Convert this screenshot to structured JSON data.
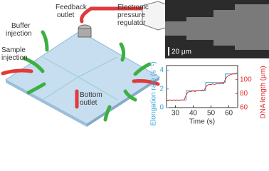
{
  "diagram": {
    "feedback_outlet": [
      "Feedback",
      "outlet"
    ],
    "pressure_regulator": [
      "Electronic",
      "pressure",
      "regulator"
    ],
    "buffer_injection": [
      "Buffer",
      "injection"
    ],
    "sample_injection": [
      "Sample",
      "injection"
    ],
    "bottom_outlet": [
      "Bottom",
      "outlet"
    ]
  },
  "micrograph": {
    "scale_bar": "20 μm"
  },
  "chart_data": {
    "type": "line",
    "x_label": "Time (s)",
    "y_label": "Elongation rate (s⁻¹)",
    "y2_label": "DNA length (μm)",
    "xlim": [
      25,
      65
    ],
    "xticks": [
      30,
      40,
      50,
      60
    ],
    "ylim": [
      0,
      4.5
    ],
    "yticks": [
      0,
      2,
      4
    ],
    "y2lim": [
      60,
      120
    ],
    "y2ticks": [
      60,
      80,
      100
    ],
    "series": [
      {
        "color": "#3aa6d8",
        "x": [
          25,
          36,
          36,
          47,
          47,
          58,
          58,
          65
        ],
        "values": [
          0.8,
          0.8,
          1.8,
          1.8,
          2.7,
          2.7,
          3.6,
          3.6
        ]
      },
      {
        "color": "#e03030",
        "axis": "y2",
        "x": [
          25,
          26,
          27,
          28,
          29,
          30,
          31,
          32,
          33,
          34,
          35,
          36,
          37,
          38,
          39,
          40,
          41,
          42,
          43,
          44,
          45,
          46,
          47,
          48,
          49,
          50,
          51,
          52,
          53,
          54,
          55,
          56,
          57,
          58,
          59,
          60,
          61,
          62,
          63,
          64,
          65
        ],
        "values": [
          70,
          70,
          71,
          70,
          71,
          70,
          71,
          70,
          71,
          71,
          71,
          78,
          82,
          83,
          83,
          84,
          83,
          84,
          84,
          84,
          85,
          84,
          89,
          92,
          93,
          93,
          94,
          93,
          94,
          94,
          94,
          95,
          94,
          100,
          104,
          106,
          107,
          108,
          108,
          109,
          109
        ]
      }
    ]
  }
}
